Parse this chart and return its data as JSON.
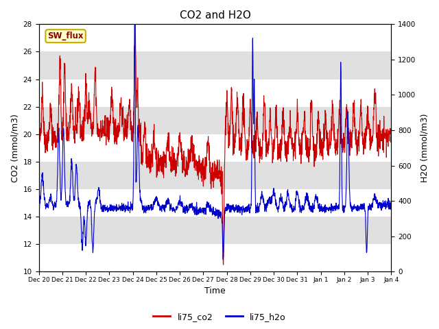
{
  "title": "CO2 and H2O",
  "xlabel": "Time",
  "ylabel_left": "CO2 (mmol/m3)",
  "ylabel_right": "H2O (mmol/m3)",
  "ylim_left": [
    10,
    28
  ],
  "ylim_right": [
    0,
    1400
  ],
  "co2_color": "#cc0000",
  "h2o_color": "#0000cc",
  "background_color": "#ffffff",
  "band_color": "#e0e0e0",
  "sw_flux_label": "SW_flux",
  "sw_flux_bg": "#ffffcc",
  "sw_flux_border": "#ccaa00",
  "legend_co2": "li75_co2",
  "legend_h2o": "li75_h2o",
  "xtick_labels": [
    "Dec 20",
    "Dec 21",
    "Dec 22",
    "Dec 23",
    "Dec 24",
    "Dec 25",
    "Dec 26",
    "Dec 27",
    "Dec 28",
    "Dec 29",
    "Dec 30",
    "Dec 31",
    "Jan 1",
    "Jan 2",
    "Jan 3",
    "Jan 4"
  ],
  "yticks_right": [
    0,
    200,
    400,
    600,
    800,
    1000,
    1200,
    1400
  ],
  "yticks_left": [
    10,
    12,
    14,
    16,
    18,
    20,
    22,
    24,
    26,
    28
  ],
  "num_days": 15,
  "title_fontsize": 11,
  "axis_label_fontsize": 9,
  "tick_fontsize": 7.5
}
